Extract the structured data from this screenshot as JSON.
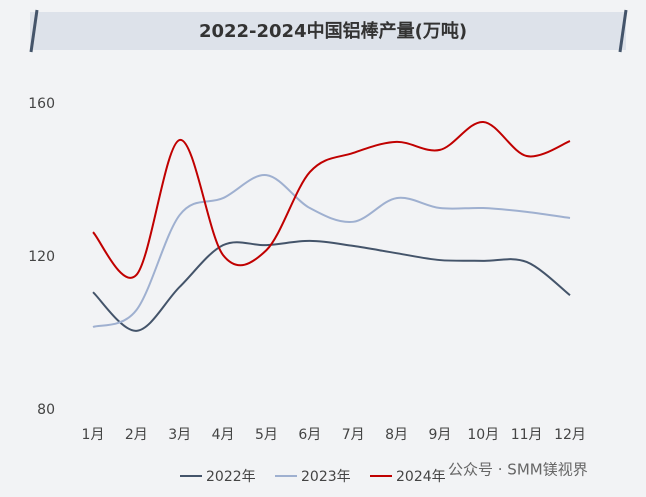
{
  "chart_data": {
    "type": "line",
    "title": "2022-2024中国铝棒产量(万吨)",
    "categories": [
      "1月",
      "2月",
      "3月",
      "4月",
      "5月",
      "6月",
      "7月",
      "8月",
      "9月",
      "10月",
      "11月",
      "12月"
    ],
    "series": [
      {
        "name": "2022年",
        "color": "#44546a",
        "values": [
          110.8,
          100.7,
          112.2,
          123.1,
          123.1,
          124.2,
          122.9,
          121,
          119.2,
          119,
          118.7,
          110
        ]
      },
      {
        "name": "2023年",
        "color": "#9fb0d0",
        "values": [
          101.7,
          106.1,
          131,
          135.4,
          141.4,
          132.8,
          129.2,
          135.4,
          132.8,
          132.8,
          131.8,
          130.2
        ]
      },
      {
        "name": "2024年",
        "color": "#c00000",
        "values": [
          126.5,
          115.3,
          150.6,
          120.5,
          121.8,
          142.2,
          147.2,
          150.1,
          148,
          155.3,
          146.4,
          150.3
        ]
      }
    ],
    "ylim": [
      80,
      160
    ],
    "yticks": [
      80,
      120,
      160
    ],
    "grid": false,
    "smooth": true,
    "legend": "bottom"
  },
  "footer": "公众号 · SMM镁视界"
}
